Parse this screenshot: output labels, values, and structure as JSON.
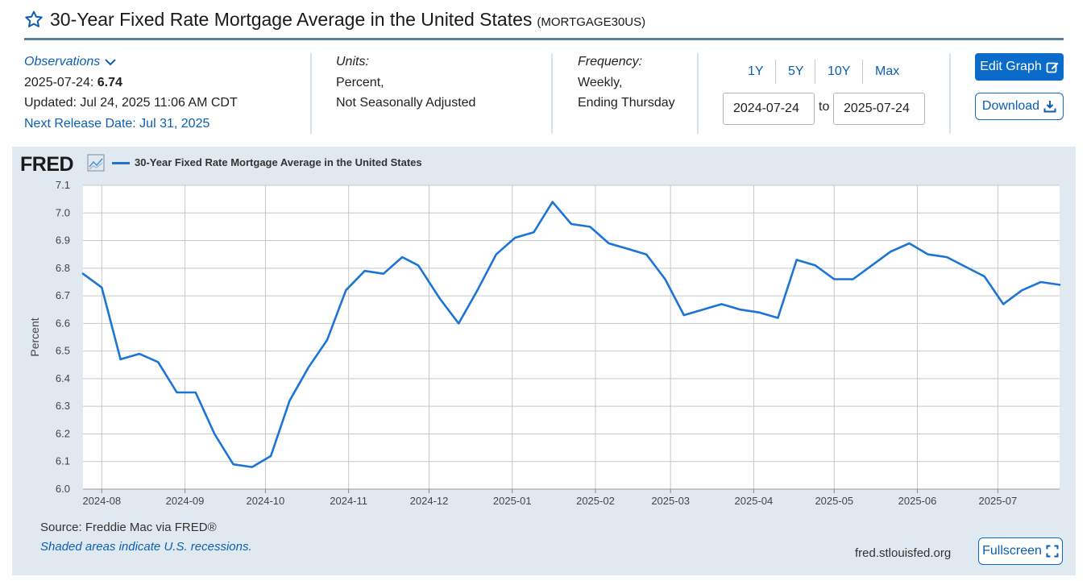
{
  "header": {
    "title": "30-Year Fixed Rate Mortgage Average in the United States",
    "series_code": "(MORTGAGE30US)"
  },
  "observations": {
    "link_label": "Observations",
    "latest_date": "2025-07-24:",
    "latest_value": "6.74",
    "updated": "Updated: Jul 24, 2025 11:06 AM CDT",
    "next_release": "Next Release Date: Jul 31, 2025"
  },
  "units": {
    "label": "Units:",
    "line1": "Percent,",
    "line2": "Not Seasonally Adjusted"
  },
  "frequency": {
    "label": "Frequency:",
    "line1": "Weekly,",
    "line2": "Ending Thursday"
  },
  "range": {
    "buttons": [
      "1Y",
      "5Y",
      "10Y",
      "Max"
    ],
    "start": "2024-07-24",
    "to": "to",
    "end": "2025-07-24"
  },
  "actions": {
    "edit_label": "Edit Graph",
    "download_label": "Download",
    "fullscreen_label": "Fullscreen"
  },
  "footer": {
    "source": "Source: Freddie Mac via FRED®",
    "shaded": "Shaded areas indicate U.S. recessions.",
    "url": "fred.stlouisfed.org"
  },
  "logo_text": "FRED",
  "colors": {
    "line": "#1b74d6",
    "link": "#0b5fb3",
    "panel": "#e1e9f0"
  },
  "chart_data": {
    "type": "line",
    "ylabel": "Percent",
    "ylim": [
      6.0,
      7.1
    ],
    "yticks": [
      "6.0",
      "6.1",
      "6.2",
      "6.3",
      "6.4",
      "6.5",
      "6.6",
      "6.7",
      "6.8",
      "6.9",
      "7.0",
      "7.1"
    ],
    "xlim": [
      "2024-07-25",
      "2025-07-24"
    ],
    "xticks": [
      {
        "label": "2024-08",
        "date": "2024-08-01"
      },
      {
        "label": "2024-09",
        "date": "2024-09-01"
      },
      {
        "label": "2024-10",
        "date": "2024-10-01"
      },
      {
        "label": "2024-11",
        "date": "2024-11-01"
      },
      {
        "label": "2024-12",
        "date": "2024-12-01"
      },
      {
        "label": "2025-01",
        "date": "2025-01-01"
      },
      {
        "label": "2025-02",
        "date": "2025-02-01"
      },
      {
        "label": "2025-03",
        "date": "2025-03-01"
      },
      {
        "label": "2025-04",
        "date": "2025-04-01"
      },
      {
        "label": "2025-05",
        "date": "2025-05-01"
      },
      {
        "label": "2025-06",
        "date": "2025-06-01"
      },
      {
        "label": "2025-07",
        "date": "2025-07-01"
      }
    ],
    "grid": true,
    "legend_position": "top-left",
    "series": [
      {
        "name": "30-Year Fixed Rate Mortgage Average in the United States",
        "x": [
          "2024-07-25",
          "2024-08-01",
          "2024-08-08",
          "2024-08-15",
          "2024-08-22",
          "2024-08-29",
          "2024-09-05",
          "2024-09-12",
          "2024-09-19",
          "2024-09-26",
          "2024-10-03",
          "2024-10-10",
          "2024-10-17",
          "2024-10-24",
          "2024-10-31",
          "2024-11-07",
          "2024-11-14",
          "2024-11-21",
          "2024-11-27",
          "2024-12-05",
          "2024-12-12",
          "2024-12-19",
          "2024-12-26",
          "2025-01-02",
          "2025-01-09",
          "2025-01-16",
          "2025-01-23",
          "2025-01-30",
          "2025-02-06",
          "2025-02-13",
          "2025-02-20",
          "2025-02-27",
          "2025-03-06",
          "2025-03-13",
          "2025-03-20",
          "2025-03-27",
          "2025-04-03",
          "2025-04-10",
          "2025-04-17",
          "2025-04-24",
          "2025-05-01",
          "2025-05-08",
          "2025-05-15",
          "2025-05-22",
          "2025-05-29",
          "2025-06-05",
          "2025-06-12",
          "2025-06-18",
          "2025-06-26",
          "2025-07-03",
          "2025-07-10",
          "2025-07-17",
          "2025-07-24"
        ],
        "values": [
          6.78,
          6.73,
          6.47,
          6.49,
          6.46,
          6.35,
          6.35,
          6.2,
          6.09,
          6.08,
          6.12,
          6.32,
          6.44,
          6.54,
          6.72,
          6.79,
          6.78,
          6.84,
          6.81,
          6.69,
          6.6,
          6.72,
          6.85,
          6.91,
          6.93,
          7.04,
          6.96,
          6.95,
          6.89,
          6.87,
          6.85,
          6.76,
          6.63,
          6.65,
          6.67,
          6.65,
          6.64,
          6.62,
          6.83,
          6.81,
          6.76,
          6.76,
          6.81,
          6.86,
          6.89,
          6.85,
          6.84,
          6.81,
          6.77,
          6.67,
          6.72,
          6.75,
          6.74
        ]
      }
    ]
  }
}
